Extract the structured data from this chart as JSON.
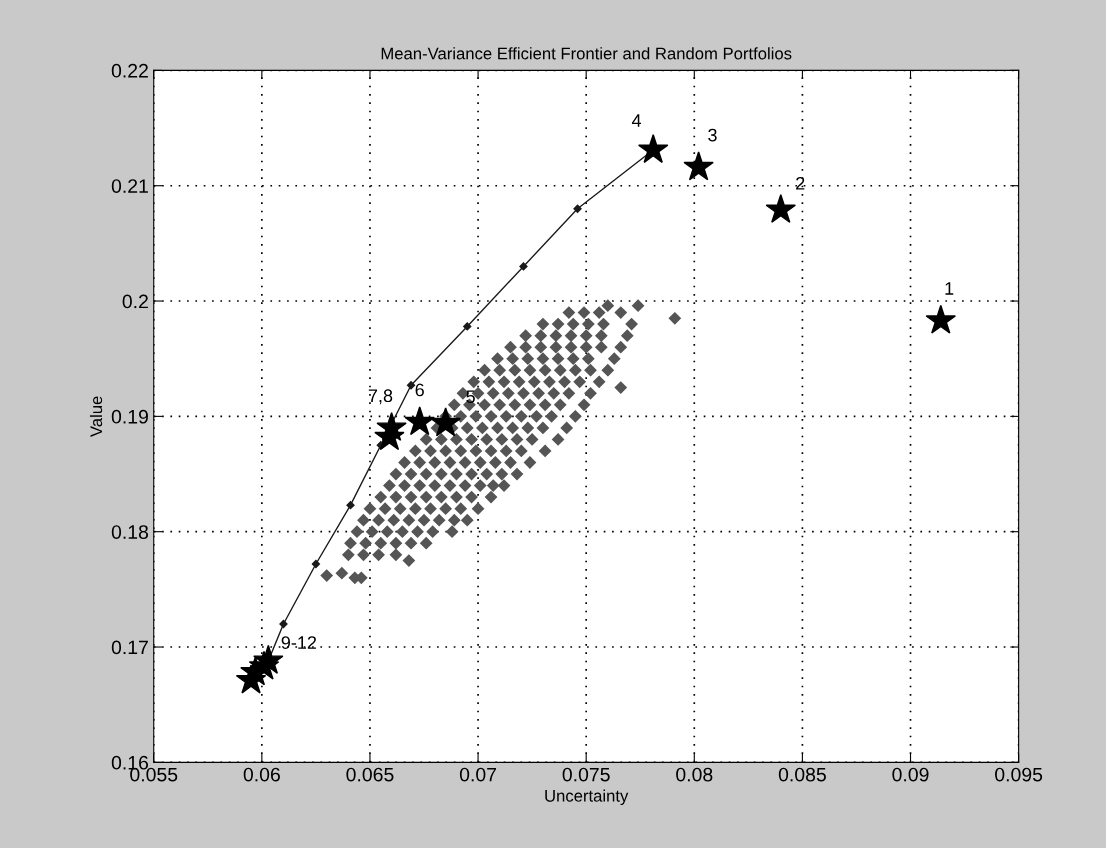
{
  "chart_data": {
    "type": "scatter",
    "title": "Mean-Variance Efficient Frontier and Random Portfolios",
    "xlabel": "Uncertainty",
    "ylabel": "Value",
    "xlim": [
      0.055,
      0.095
    ],
    "xticks": [
      0.055,
      0.06,
      0.065,
      0.07,
      0.075,
      0.08,
      0.085,
      0.09,
      0.095
    ],
    "ylim": [
      0.16,
      0.22
    ],
    "yticks": [
      0.16,
      0.17,
      0.18,
      0.19,
      0.2,
      0.21,
      0.22
    ],
    "grid": true,
    "series": [
      {
        "marker": "diamond",
        "color": "#555555",
        "x": [
          0.064,
          0.0647,
          0.0654,
          0.0662,
          0.0641,
          0.0648,
          0.0655,
          0.0662,
          0.0669,
          0.0676,
          0.0644,
          0.0651,
          0.0658,
          0.0665,
          0.0672,
          0.0679,
          0.0688,
          0.0647,
          0.0654,
          0.0661,
          0.0668,
          0.0675,
          0.0682,
          0.0689,
          0.0695,
          0.065,
          0.0657,
          0.0664,
          0.0671,
          0.0678,
          0.0685,
          0.0692,
          0.07,
          0.0655,
          0.0662,
          0.0669,
          0.0676,
          0.0683,
          0.069,
          0.0697,
          0.0706,
          0.0659,
          0.0666,
          0.0673,
          0.068,
          0.0687,
          0.0694,
          0.0701,
          0.0707,
          0.0712,
          0.0662,
          0.0669,
          0.0676,
          0.0683,
          0.069,
          0.0697,
          0.0704,
          0.0711,
          0.0718,
          0.0666,
          0.0673,
          0.068,
          0.0687,
          0.0694,
          0.0701,
          0.0708,
          0.0715,
          0.0724,
          0.0671,
          0.0678,
          0.0685,
          0.0692,
          0.0699,
          0.0706,
          0.0713,
          0.072,
          0.0731,
          0.0676,
          0.0683,
          0.069,
          0.0697,
          0.0704,
          0.0711,
          0.0718,
          0.0725,
          0.0737,
          0.0681,
          0.0688,
          0.0695,
          0.0702,
          0.0709,
          0.0716,
          0.0723,
          0.073,
          0.0741,
          0.0685,
          0.0692,
          0.0699,
          0.0706,
          0.0713,
          0.072,
          0.0727,
          0.0734,
          0.0745,
          0.0689,
          0.0696,
          0.0703,
          0.071,
          0.0717,
          0.0724,
          0.0731,
          0.0738,
          0.0749,
          0.0693,
          0.07,
          0.0707,
          0.0714,
          0.0721,
          0.0728,
          0.0735,
          0.0742,
          0.0752,
          0.0698,
          0.0705,
          0.0712,
          0.0719,
          0.0726,
          0.0733,
          0.074,
          0.0747,
          0.0756,
          0.0703,
          0.071,
          0.0717,
          0.0724,
          0.0731,
          0.0738,
          0.0745,
          0.0752,
          0.076,
          0.0709,
          0.0716,
          0.0723,
          0.073,
          0.0737,
          0.0744,
          0.0751,
          0.0763,
          0.0715,
          0.0722,
          0.0729,
          0.0736,
          0.0743,
          0.075,
          0.0757,
          0.0766,
          0.0722,
          0.0729,
          0.0736,
          0.0743,
          0.075,
          0.0757,
          0.0769,
          0.073,
          0.0737,
          0.0744,
          0.0751,
          0.0758,
          0.0771,
          0.0742,
          0.0749,
          0.0756,
          0.0766,
          0.063,
          0.0637,
          0.0643,
          0.0646,
          0.0668,
          0.0766,
          0.0791,
          0.076,
          0.0774
        ],
        "values": [
          0.178,
          0.178,
          0.178,
          0.178,
          0.179,
          0.179,
          0.179,
          0.179,
          0.179,
          0.179,
          0.18,
          0.18,
          0.18,
          0.18,
          0.18,
          0.18,
          0.18,
          0.181,
          0.181,
          0.181,
          0.181,
          0.181,
          0.181,
          0.181,
          0.181,
          0.182,
          0.182,
          0.182,
          0.182,
          0.182,
          0.182,
          0.182,
          0.182,
          0.183,
          0.183,
          0.183,
          0.183,
          0.183,
          0.183,
          0.183,
          0.183,
          0.184,
          0.184,
          0.184,
          0.184,
          0.184,
          0.184,
          0.184,
          0.184,
          0.184,
          0.185,
          0.185,
          0.185,
          0.185,
          0.185,
          0.185,
          0.185,
          0.185,
          0.185,
          0.186,
          0.186,
          0.186,
          0.186,
          0.186,
          0.186,
          0.186,
          0.186,
          0.186,
          0.187,
          0.187,
          0.187,
          0.187,
          0.187,
          0.187,
          0.187,
          0.187,
          0.187,
          0.188,
          0.188,
          0.188,
          0.188,
          0.188,
          0.188,
          0.188,
          0.188,
          0.188,
          0.189,
          0.189,
          0.189,
          0.189,
          0.189,
          0.189,
          0.189,
          0.189,
          0.189,
          0.19,
          0.19,
          0.19,
          0.19,
          0.19,
          0.19,
          0.19,
          0.19,
          0.19,
          0.191,
          0.191,
          0.191,
          0.191,
          0.191,
          0.191,
          0.191,
          0.191,
          0.191,
          0.192,
          0.192,
          0.192,
          0.192,
          0.192,
          0.192,
          0.192,
          0.192,
          0.192,
          0.193,
          0.193,
          0.193,
          0.193,
          0.193,
          0.193,
          0.193,
          0.193,
          0.193,
          0.194,
          0.194,
          0.194,
          0.194,
          0.194,
          0.194,
          0.194,
          0.194,
          0.194,
          0.195,
          0.195,
          0.195,
          0.195,
          0.195,
          0.195,
          0.195,
          0.195,
          0.196,
          0.196,
          0.196,
          0.196,
          0.196,
          0.196,
          0.196,
          0.196,
          0.197,
          0.197,
          0.197,
          0.197,
          0.197,
          0.197,
          0.197,
          0.198,
          0.198,
          0.198,
          0.198,
          0.198,
          0.198,
          0.199,
          0.199,
          0.199,
          0.199,
          0.1762,
          0.1764,
          0.176,
          0.176,
          0.1775,
          0.1925,
          0.1985,
          0.1996,
          0.1996
        ]
      },
      {
        "type": "line",
        "marker": "diamond",
        "color": "#1a1a1a",
        "x": [
          0.0603,
          0.061,
          0.0625,
          0.0641,
          0.0655,
          0.0669,
          0.0695,
          0.0721,
          0.0746,
          0.0781
        ],
        "values": [
          0.1688,
          0.172,
          0.1772,
          0.1823,
          0.1875,
          0.1927,
          0.1978,
          0.203,
          0.208,
          0.2131
        ]
      },
      {
        "marker": "star",
        "color": "#000000",
        "x": [
          0.0914,
          0.084,
          0.0802,
          0.0781,
          0.0685,
          0.0673,
          0.066,
          0.0659,
          0.0595,
          0.0597,
          0.0601,
          0.0603
        ],
        "values": [
          0.1983,
          0.2079,
          0.2116,
          0.2131,
          0.1894,
          0.1895,
          0.189,
          0.1882,
          0.1671,
          0.1678,
          0.1683,
          0.1688
        ]
      }
    ],
    "annotations": [
      {
        "text": "1",
        "x": 0.0914,
        "y": 0.1983
      },
      {
        "text": "2",
        "x": 0.084,
        "y": 0.2079
      },
      {
        "text": "3",
        "x": 0.0802,
        "y": 0.2116
      },
      {
        "text": "4",
        "x": 0.0781,
        "y": 0.2131
      },
      {
        "text": "5",
        "x": 0.0685,
        "y": 0.1894
      },
      {
        "text": "6",
        "x": 0.0673,
        "y": 0.1895
      },
      {
        "text": "7,8",
        "x": 0.066,
        "y": 0.189
      },
      {
        "text": "9-12",
        "x": 0.0603,
        "y": 0.1688
      }
    ]
  }
}
